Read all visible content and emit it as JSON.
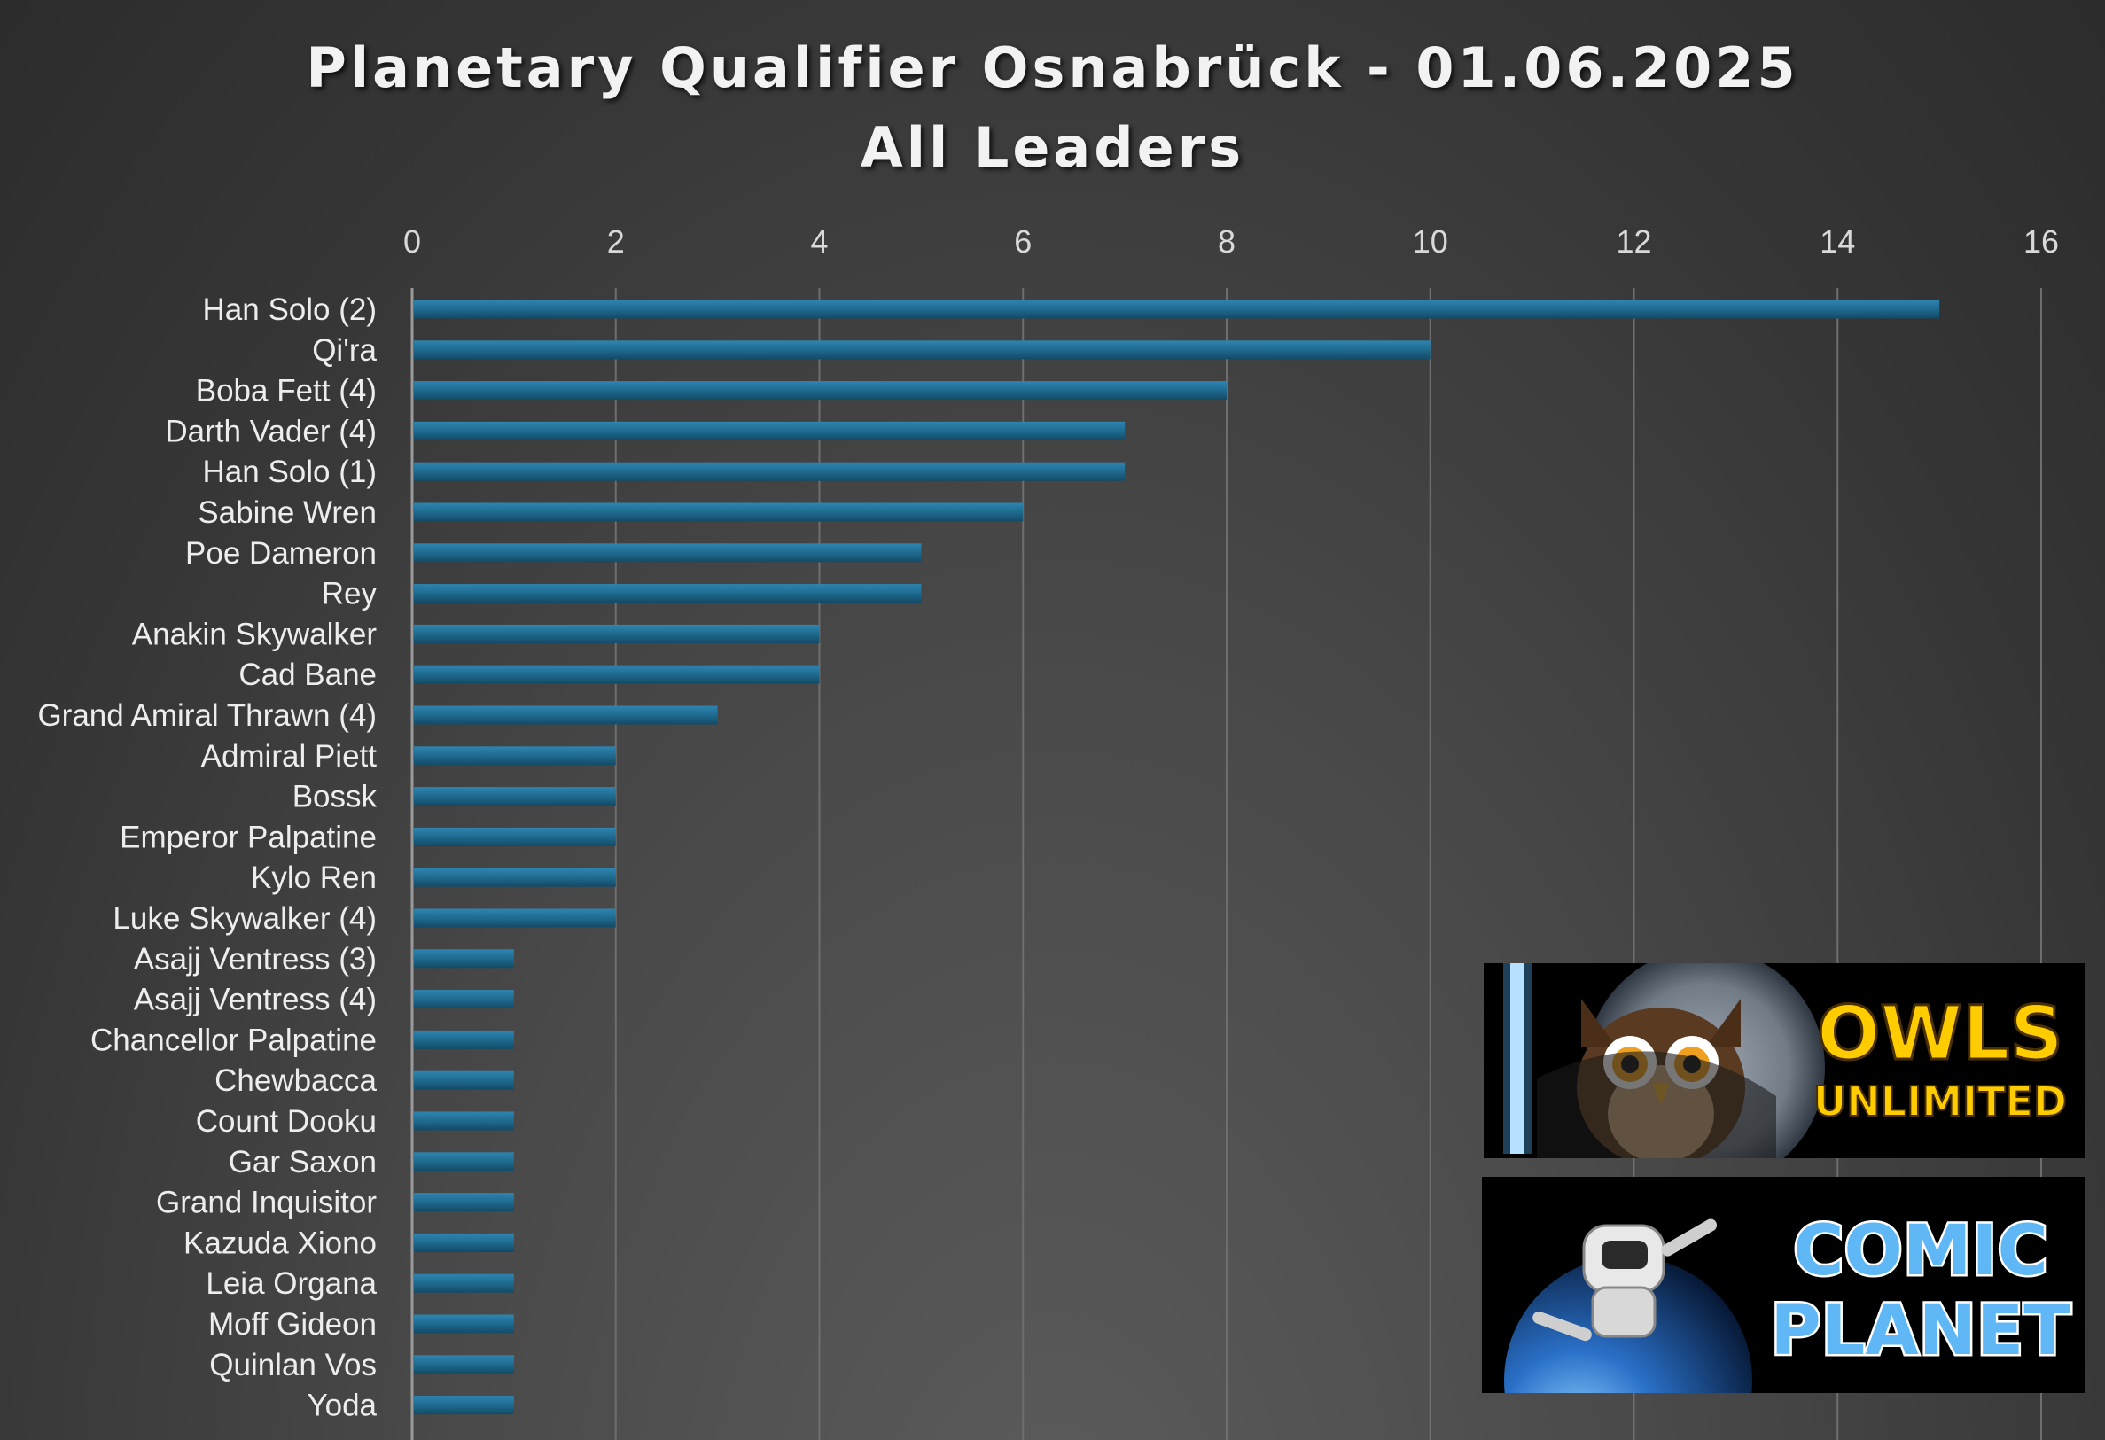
{
  "chart_data": {
    "type": "bar",
    "orientation": "horizontal",
    "title": "Planetary Qualifier Osnabrück - 01.06.2025",
    "subtitle": "All Leaders",
    "xlim": [
      0,
      16
    ],
    "x_ticks": [
      "0",
      "2",
      "4",
      "6",
      "8",
      "10",
      "12",
      "14",
      "16"
    ],
    "grid": true,
    "bar_color": "#1f6a8f",
    "categories": [
      "Han Solo (2)",
      "Qi'ra",
      "Boba Fett (4)",
      "Darth Vader (4)",
      "Han Solo (1)",
      "Sabine Wren",
      "Poe Dameron",
      "Rey",
      "Anakin Skywalker",
      "Cad Bane",
      "Grand Amiral Thrawn (4)",
      "Admiral Piett",
      "Bossk",
      "Emperor Palpatine",
      "Kylo Ren",
      "Luke Skywalker (4)",
      "Asajj Ventress (3)",
      "Asajj Ventress (4)",
      "Chancellor Palpatine",
      "Chewbacca",
      "Count Dooku",
      "Gar Saxon",
      "Grand Inquisitor",
      "Kazuda Xiono",
      "Leia Organa",
      "Moff Gideon",
      "Quinlan Vos",
      "Yoda"
    ],
    "values": [
      15,
      10,
      8,
      7,
      7,
      6,
      5,
      5,
      4,
      4,
      3,
      2,
      2,
      2,
      2,
      2,
      1,
      1,
      1,
      1,
      1,
      1,
      1,
      1,
      1,
      1,
      1,
      1
    ]
  },
  "logos": {
    "owls": {
      "line1": "OWLS",
      "line2": "UNLIMITED"
    },
    "comic": {
      "line1": "COMIC",
      "line2": "PLANET"
    }
  }
}
